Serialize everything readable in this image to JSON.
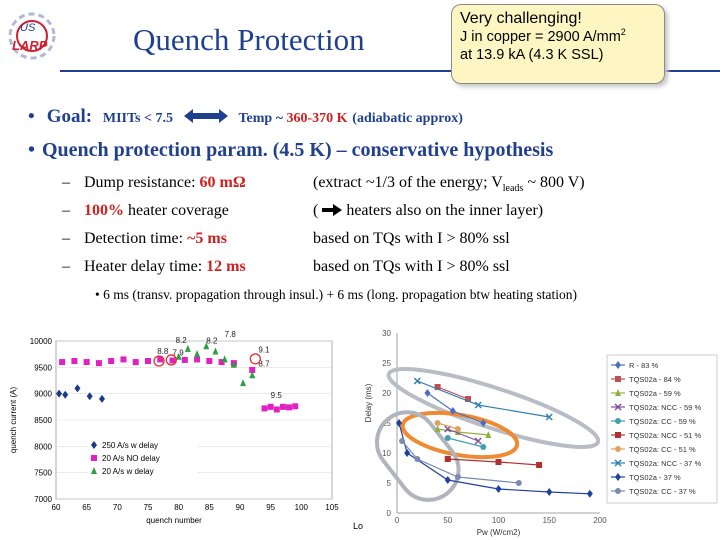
{
  "header": {
    "logo_text": "US LARP",
    "title": "Quench Protection",
    "callout_line1": "Very challenging!",
    "callout_line2": "J in copper = 2900 A/mm",
    "callout_sup": "2",
    "callout_line3": "at 13.9 kA (4.3 K SSL)"
  },
  "bullets": {
    "goal_label": "Goal:",
    "goal_miits": "MIITs < 7.5",
    "goal_temp_prefix": "Temp ~ ",
    "goal_temp_value": "360-370 K",
    "goal_suffix": "(adiabatic approx)",
    "param_line": "Quench protection param. (4.5 K) – conservative hypothesis",
    "sub_items": [
      {
        "dash": "–",
        "pre": "Dump resistance: ",
        "red": "60 mΩ",
        "post": "",
        "note_pre": "(extract ~1/3 of the energy; V",
        "note_sub": "leads",
        "note_post": " ~ 800 V)"
      },
      {
        "dash": "–",
        "pre": "",
        "red": "100%",
        "post": " heater coverage",
        "note_pre": "( ",
        "note_sub": "",
        "note_post": " heaters also on the inner layer)"
      },
      {
        "dash": "–",
        "pre": "Detection time: ",
        "red": "~5 ms",
        "post": "",
        "note_pre": "based on TQs with  I > 80% ssl",
        "note_sub": "",
        "note_post": ""
      },
      {
        "dash": "–",
        "pre": "Heater delay time: ",
        "red": "12 ms",
        "post": "",
        "note_pre": "based on TQs with  I > 80% ssl",
        "note_sub": "",
        "note_post": ""
      }
    ],
    "third_level": "•  6 ms (transv. propagation through insul.) + 6 ms (long. propagation btw heating station)"
  },
  "chart_data": [
    {
      "type": "scatter",
      "xlabel": "quench number",
      "ylabel": "quench current (A)",
      "xlim": [
        60,
        105
      ],
      "ylim": [
        7000,
        10000
      ],
      "x_ticks": [
        60,
        65,
        70,
        75,
        80,
        85,
        90,
        95,
        100,
        105
      ],
      "y_ticks": [
        7000,
        7500,
        8000,
        8500,
        9000,
        9500,
        10000
      ],
      "x_tick_labels": [
        "60",
        "65",
        "70",
        "75",
        "80",
        "85",
        "90",
        "95",
        "100",
        "105"
      ],
      "y_tick_labels": [
        "7000",
        "7500",
        "8000",
        "8500",
        "9000",
        "9500",
        "10000"
      ],
      "legend_position": "bottom-left",
      "series": [
        {
          "name": "250 A/s w delay",
          "color": "#1a3a8a",
          "marker": "diamond",
          "x": [
            60.5,
            61.5,
            63.5,
            65.5,
            67.5
          ],
          "y": [
            9000,
            8980,
            9100,
            8950,
            8900
          ]
        },
        {
          "name": "20 A/s NO delay",
          "color": "#e020c0",
          "marker": "square",
          "x": [
            61,
            63,
            65,
            67,
            69,
            71,
            73,
            75,
            77,
            79,
            81,
            83,
            85,
            87,
            89,
            92,
            94,
            95,
            96,
            97,
            98,
            99
          ],
          "y": [
            9600,
            9620,
            9600,
            9580,
            9620,
            9650,
            9600,
            9620,
            9650,
            9630,
            9640,
            9650,
            9620,
            9600,
            9580,
            9450,
            8720,
            8750,
            8700,
            8750,
            8740,
            8760
          ]
        },
        {
          "name": "20 A/s w delay",
          "color": "#2aa040",
          "marker": "triangle",
          "x": [
            80,
            81.5,
            83,
            84.5,
            86,
            87.5,
            89,
            90.5,
            92
          ],
          "y": [
            9700,
            9850,
            9750,
            9900,
            9800,
            9650,
            9550,
            9200,
            9350
          ]
        }
      ],
      "annotations": [
        {
          "text": "8.2",
          "x": 79.5,
          "y": 9960
        },
        {
          "text": "8.2",
          "x": 84.5,
          "y": 9950
        },
        {
          "text": "7.8",
          "x": 87.5,
          "y": 10080
        },
        {
          "text": "8.8",
          "x": 76.5,
          "y": 9750
        },
        {
          "text": "7.9",
          "x": 79,
          "y": 9720
        },
        {
          "text": "9.1",
          "x": 93,
          "y": 9780
        },
        {
          "text": "8.7",
          "x": 93,
          "y": 9520
        },
        {
          "text": "9.5",
          "x": 95,
          "y": 8920
        }
      ],
      "circled_points": [
        {
          "x": 76.8,
          "y": 9620
        },
        {
          "x": 78.8,
          "y": 9640
        },
        {
          "x": 92.5,
          "y": 9660
        }
      ]
    },
    {
      "type": "line",
      "xlabel": "Pw (W/cm2)",
      "ylabel": "Delay (ms)",
      "xlim": [
        0,
        200
      ],
      "ylim": [
        0,
        30
      ],
      "x_ticks": [
        0,
        50,
        100,
        150,
        200
      ],
      "y_ticks": [
        0,
        5,
        10,
        15,
        20,
        25,
        30
      ],
      "x_tick_labels": [
        "0",
        "50",
        "100",
        "150",
        "200"
      ],
      "y_tick_labels": [
        "0",
        "5",
        "10",
        "15",
        "20",
        "25",
        "30"
      ],
      "corner_label": "Lo",
      "legend_position": "right",
      "series": [
        {
          "name": "R - 83 %",
          "color": "#4a6fc0",
          "marker": "diamond",
          "x": [
            30,
            55,
            85
          ],
          "y": [
            20,
            17,
            15
          ]
        },
        {
          "name": "TQS02a - 84 %",
          "color": "#c05050",
          "marker": "square",
          "x": [
            40,
            70
          ],
          "y": [
            21,
            19
          ]
        },
        {
          "name": "TQS02a - 59 %",
          "color": "#90b040",
          "marker": "triangle",
          "x": [
            40,
            60,
            90
          ],
          "y": [
            14,
            13.5,
            13
          ]
        },
        {
          "name": "TQS02a: NCC - 59 %",
          "color": "#8050a0",
          "marker": "x",
          "x": [
            50,
            80
          ],
          "y": [
            14,
            12
          ]
        },
        {
          "name": "TQS02a: CC - 59 %",
          "color": "#40a0b0",
          "marker": "circle",
          "x": [
            50,
            85
          ],
          "y": [
            12.5,
            11
          ]
        },
        {
          "name": "TQS02a: NCC - 51 %",
          "color": "#b03030",
          "marker": "square",
          "x": [
            50,
            100,
            140
          ],
          "y": [
            9,
            8.5,
            8
          ]
        },
        {
          "name": "TQS02a: CC - 51 %",
          "color": "#e0a060",
          "marker": "circle",
          "x": [
            40,
            60
          ],
          "y": [
            15,
            14
          ]
        },
        {
          "name": "TQS02a: NCC - 37 %",
          "color": "#3080b0",
          "marker": "x",
          "x": [
            20,
            80,
            150
          ],
          "y": [
            22,
            18,
            16
          ]
        },
        {
          "name": "TQS02a - 37 %",
          "color": "#2040a0",
          "marker": "diamond",
          "x": [
            2,
            10,
            50,
            100,
            150,
            190
          ],
          "y": [
            15,
            10,
            5.5,
            4,
            3.5,
            3.2
          ]
        },
        {
          "name": "TQS02a: CC - 37 %",
          "color": "#7a8ab0",
          "marker": "circle",
          "x": [
            5,
            20,
            60,
            120
          ],
          "y": [
            12,
            9,
            6,
            5
          ]
        }
      ]
    }
  ]
}
